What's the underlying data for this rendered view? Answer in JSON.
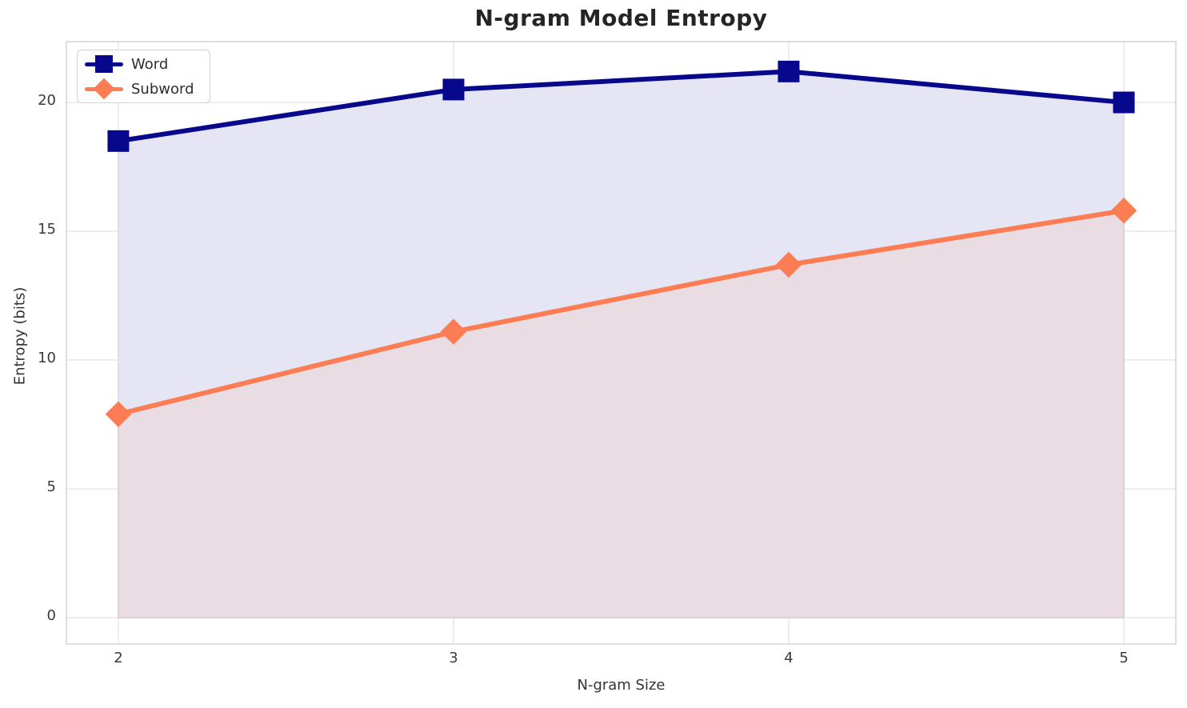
{
  "chart_data": {
    "type": "line",
    "title": "N-gram Model Entropy",
    "xlabel": "N-gram Size",
    "ylabel": "Entropy (bits)",
    "x": [
      2,
      3,
      4,
      5
    ],
    "series": [
      {
        "name": "Word",
        "values": [
          18.5,
          20.5,
          21.2,
          20.0
        ],
        "color": "#08088C",
        "marker": "square",
        "area_fill": "#E5E5F3",
        "area_edge": "#DADAEE"
      },
      {
        "name": "Subword",
        "values": [
          7.9,
          11.1,
          13.7,
          15.8
        ],
        "color": "#FC7D53",
        "marker": "diamond",
        "area_fill": "#E9DCE3",
        "area_edge": "#DCC9D5"
      }
    ],
    "xticks": [
      "2",
      "3",
      "4",
      "5"
    ],
    "xtick_values": [
      2,
      3,
      4,
      5
    ],
    "yticks": [
      "0",
      "5",
      "10",
      "15",
      "20"
    ],
    "ytick_values": [
      0,
      5,
      10,
      15,
      20
    ],
    "xlim": [
      1.845,
      5.155
    ],
    "ylim": [
      -1.02,
      22.36
    ],
    "fill_baseline": 0,
    "grid": true,
    "legend_position": "upper left",
    "colors": {
      "grid": "#EBEBEB",
      "spine": "#D6D6D6",
      "tick_text": "#3a3a3a",
      "title_text": "#252525",
      "background": "#FFFFFF"
    }
  }
}
